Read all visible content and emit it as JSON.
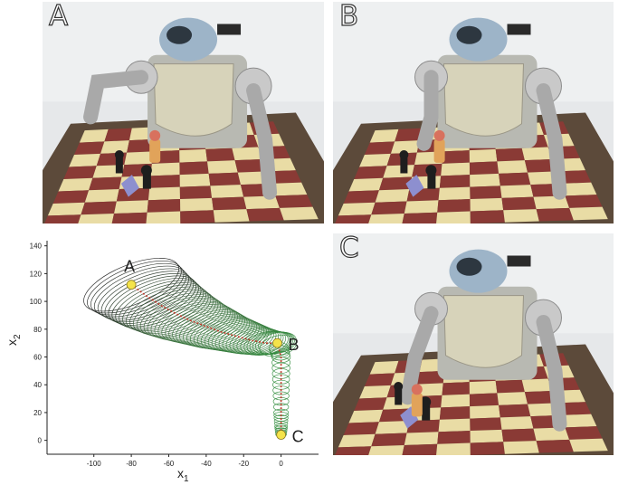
{
  "panels": [
    {
      "id": "A",
      "label": "A"
    },
    {
      "id": "B",
      "label": "B"
    },
    {
      "id": "C",
      "label": "C"
    }
  ],
  "chart_data": {
    "type": "line",
    "title": "",
    "xlabel": "x1",
    "ylabel": "x2",
    "xlim": [
      -125,
      20
    ],
    "ylim": [
      -10,
      145
    ],
    "xticks": [
      -100,
      -80,
      -60,
      -40,
      -20,
      0
    ],
    "yticks": [
      0,
      20,
      40,
      60,
      80,
      100,
      120,
      140
    ],
    "grid": false,
    "series": [
      {
        "x": [
          -80,
          -72,
          -64,
          -56,
          -48,
          -40,
          -32,
          -24,
          -16,
          -8,
          -2,
          0,
          0,
          0,
          0,
          0
        ],
        "y": [
          112,
          104,
          97,
          91,
          86,
          82,
          78,
          75,
          72,
          70,
          70,
          60,
          40,
          20,
          10,
          4
        ],
        "color": "#c0392b"
      }
    ],
    "annotations": [
      {
        "label": "A",
        "x": -80,
        "y": 112
      },
      {
        "label": "B",
        "x": -2,
        "y": 70
      },
      {
        "label": "C",
        "x": 0,
        "y": 4
      }
    ],
    "colors": {
      "ellipse_start": "#1a1a1a",
      "ellipse_end": "#2e8b3a",
      "path": "#c0392b",
      "marker": "#f4e34a"
    }
  }
}
